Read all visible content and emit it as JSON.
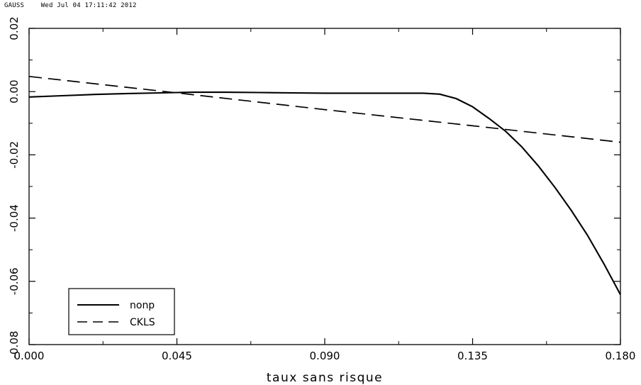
{
  "header": {
    "software": "GAUSS",
    "timestamp": "Wed Jul 04 17:11:42 2012"
  },
  "chart_data": {
    "type": "line",
    "title": "",
    "xlabel": "taux sans risque",
    "ylabel": "",
    "xlim": [
      0.0,
      0.18
    ],
    "ylim": [
      -0.08,
      0.02
    ],
    "x_ticks": [
      {
        "value": 0.0,
        "label": "0.000"
      },
      {
        "value": 0.045,
        "label": "0.045"
      },
      {
        "value": 0.09,
        "label": "0.090"
      },
      {
        "value": 0.135,
        "label": "0.135"
      },
      {
        "value": 0.18,
        "label": "0.180"
      }
    ],
    "y_ticks": [
      {
        "value": 0.02,
        "label": "0.02"
      },
      {
        "value": 0.0,
        "label": "0.00"
      },
      {
        "value": -0.02,
        "label": "-0.02"
      },
      {
        "value": -0.04,
        "label": "-0.04"
      },
      {
        "value": -0.06,
        "label": "-0.06"
      },
      {
        "value": -0.08,
        "label": "-0.08"
      }
    ],
    "legend": {
      "position": "bottom-left"
    },
    "series": [
      {
        "name": "nonp",
        "style": "solid",
        "color": "#000000",
        "x": [
          0.0,
          0.01,
          0.02,
          0.03,
          0.04,
          0.045,
          0.05,
          0.06,
          0.07,
          0.08,
          0.09,
          0.1,
          0.11,
          0.12,
          0.125,
          0.13,
          0.135,
          0.14,
          0.145,
          0.15,
          0.155,
          0.16,
          0.165,
          0.17,
          0.175,
          0.18
        ],
        "y": [
          -0.0017,
          -0.0013,
          -0.0009,
          -0.0006,
          -0.0004,
          -0.0003,
          -0.0002,
          -0.0002,
          -0.0003,
          -0.0004,
          -0.0005,
          -0.0005,
          -0.0005,
          -0.0005,
          -0.0008,
          -0.0022,
          -0.0048,
          -0.0085,
          -0.0125,
          -0.0175,
          -0.0235,
          -0.0302,
          -0.0375,
          -0.0455,
          -0.0545,
          -0.0642
        ]
      },
      {
        "name": "CKLS",
        "style": "dashed",
        "color": "#000000",
        "x": [
          0.0,
          0.045,
          0.09,
          0.135,
          0.18
        ],
        "y": [
          0.0048,
          -0.0004,
          -0.0057,
          -0.0108,
          -0.016
        ]
      }
    ]
  }
}
